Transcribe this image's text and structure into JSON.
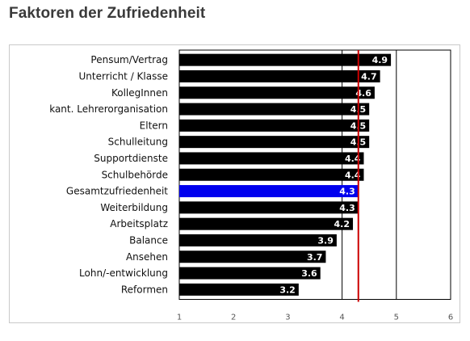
{
  "page": {
    "title": "Faktoren der Zufriedenheit"
  },
  "chart_data": {
    "type": "bar",
    "orientation": "horizontal",
    "categories": [
      "Pensum/Vertrag",
      "Unterricht / Klasse",
      "KollegInnen",
      "kant. Lehrerorganisation",
      "Eltern",
      "Schulleitung",
      "Supportdienste",
      "Schulbehörde",
      "Gesamtzufriedenheit",
      "Weiterbildung",
      "Arbeitsplatz",
      "Balance",
      "Ansehen",
      "Lohn/-entwicklung",
      "Reformen"
    ],
    "values": [
      4.9,
      4.7,
      4.6,
      4.5,
      4.5,
      4.5,
      4.4,
      4.4,
      4.3,
      4.3,
      4.2,
      3.9,
      3.7,
      3.6,
      3.2
    ],
    "value_labels": [
      "4.9",
      "4.7",
      "4.6",
      "4.5",
      "4.5",
      "4.5",
      "4.4",
      "4.4",
      "4.3",
      "4.3",
      "4.2",
      "3.9",
      "3.7",
      "3.6",
      "3.2"
    ],
    "highlight_category": "Gesamtzufriedenheit",
    "xlim": [
      1,
      6
    ],
    "x_ticks": [
      1,
      2,
      3,
      4,
      5,
      6
    ],
    "x_tick_labels": [
      "1",
      "2",
      "3",
      "4",
      "5",
      "6"
    ],
    "reference_line": 4.3,
    "grid": "vertical lines at 4 and 5",
    "colors": {
      "bar": "#000000",
      "highlight_bar": "#0000ee",
      "reference_line": "#cc0000",
      "grid": "#000000"
    }
  }
}
